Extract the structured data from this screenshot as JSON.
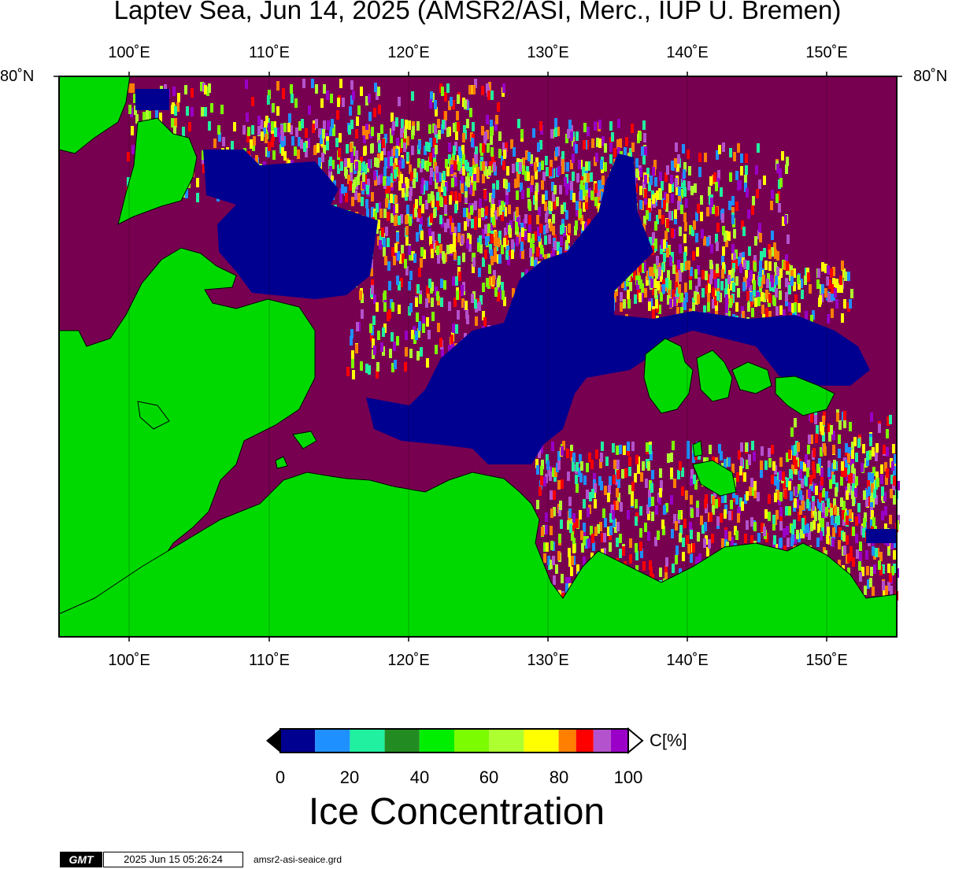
{
  "title": "Laptev Sea, Jun 14, 2025 (AMSR2/ASI, Merc., IUP U. Bremen)",
  "map": {
    "longitude_labels": [
      "100˚E",
      "110˚E",
      "120˚E",
      "130˚E",
      "140˚E",
      "150˚E"
    ],
    "latitude_label_left": "80˚N",
    "latitude_label_right": "80˚N",
    "colors": {
      "land": "#00d900",
      "open_water": "#780050",
      "coast": "#000000"
    }
  },
  "colorbar": {
    "ticks": [
      "0",
      "20",
      "40",
      "60",
      "80",
      "100"
    ],
    "unit": "C[%]",
    "colors": [
      "#000090",
      "#1e90ff",
      "#20f0a0",
      "#228b22",
      "#00ee00",
      "#7cfc00",
      "#adff2f",
      "#ffff00",
      "#ff7f00",
      "#ff0000",
      "#b452cd",
      "#9a00c8"
    ]
  },
  "heading": "Ice Concentration",
  "footer": {
    "logo": "GMT",
    "timestamp": "2025 Jun 15 05:26:24",
    "filename": "amsr2-asi-seaice.grd"
  }
}
